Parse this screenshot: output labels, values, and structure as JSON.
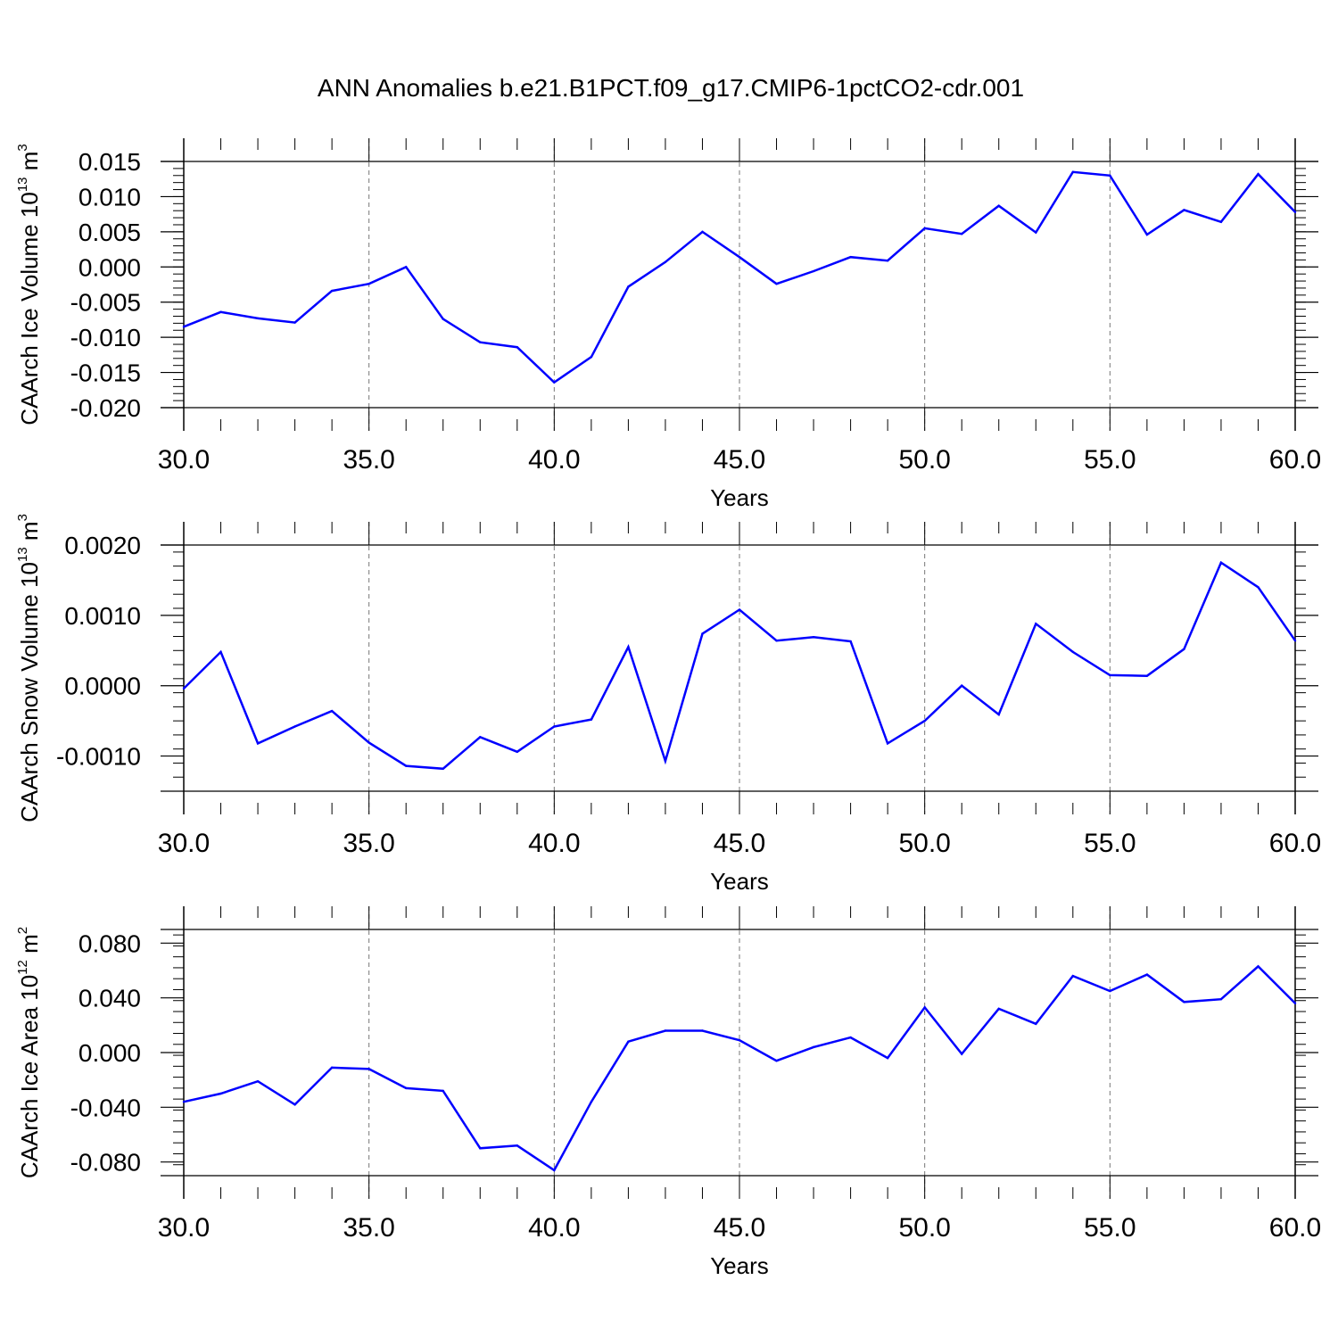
{
  "title": "ANN Anomalies b.e21.B1PCT.f09_g17.CMIP6-1pctCO2-cdr.001",
  "colors": {
    "line": "#0000ff",
    "axis": "#000000",
    "grid": "#777777"
  },
  "chart_data": [
    {
      "type": "line",
      "ylabel": {
        "text": "CAArch Ice Volume 10",
        "exp": "13",
        "unit": " m",
        "unit_exp": "3"
      },
      "xlabel": "Years",
      "xlim": [
        30,
        60
      ],
      "ylim": [
        -0.02,
        0.015
      ],
      "x_ticks": [
        "30.0",
        "35.0",
        "40.0",
        "45.0",
        "50.0",
        "55.0",
        "60.0"
      ],
      "y_ticks": [
        {
          "value": 0.015,
          "label": "0.015"
        },
        {
          "value": 0.01,
          "label": "0.010"
        },
        {
          "value": 0.005,
          "label": "0.005"
        },
        {
          "value": 0.0,
          "label": "0.000"
        },
        {
          "value": -0.005,
          "label": "-0.005"
        },
        {
          "value": -0.01,
          "label": "-0.010"
        },
        {
          "value": -0.015,
          "label": "-0.015"
        },
        {
          "value": -0.02,
          "label": "-0.020"
        }
      ],
      "x": [
        30,
        31,
        32,
        33,
        34,
        35,
        36,
        37,
        38,
        39,
        40,
        41,
        42,
        43,
        44,
        45,
        46,
        47,
        48,
        49,
        50,
        51,
        52,
        53,
        54,
        55,
        56,
        57,
        58,
        59,
        60
      ],
      "y": [
        -0.0085,
        -0.0064,
        -0.0073,
        -0.0079,
        -0.0034,
        -0.0024,
        0.0,
        -0.0074,
        -0.0107,
        -0.0114,
        -0.0164,
        -0.0128,
        -0.0028,
        0.0007,
        0.005,
        0.0014,
        -0.0024,
        -0.0006,
        0.0014,
        0.0009,
        0.0055,
        0.0047,
        0.0087,
        0.0049,
        0.0135,
        0.013,
        0.0046,
        0.0081,
        0.0064,
        0.0132,
        0.0078
      ],
      "grid": true
    },
    {
      "type": "line",
      "ylabel": {
        "text": "CAArch Snow Volume 10",
        "exp": "13",
        "unit": " m",
        "unit_exp": "3"
      },
      "xlabel": "Years",
      "xlim": [
        30,
        60
      ],
      "ylim": [
        -0.0015,
        0.002
      ],
      "x_ticks": [
        "30.0",
        "35.0",
        "40.0",
        "45.0",
        "50.0",
        "55.0",
        "60.0"
      ],
      "y_ticks": [
        {
          "value": 0.002,
          "label": "0.0020"
        },
        {
          "value": 0.001,
          "label": "0.0010"
        },
        {
          "value": 0.0,
          "label": "0.0000"
        },
        {
          "value": -0.001,
          "label": "-0.0010"
        }
      ],
      "x": [
        30,
        31,
        32,
        33,
        34,
        35,
        36,
        37,
        38,
        39,
        40,
        41,
        42,
        43,
        44,
        45,
        46,
        47,
        48,
        49,
        50,
        51,
        52,
        53,
        54,
        55,
        56,
        57,
        58,
        59,
        60
      ],
      "y": [
        -4e-05,
        0.00048,
        -0.00082,
        -0.00058,
        -0.00036,
        -0.00081,
        -0.00114,
        -0.00118,
        -0.00073,
        -0.00094,
        -0.00058,
        -0.00048,
        0.00055,
        -0.00107,
        0.00074,
        0.00108,
        0.00064,
        0.00069,
        0.00063,
        -0.00082,
        -0.0005,
        0.0,
        -0.00041,
        0.00088,
        0.00048,
        0.00015,
        0.00014,
        0.00052,
        0.00175,
        0.0014,
        0.00064
      ],
      "grid": true
    },
    {
      "type": "line",
      "ylabel": {
        "text": "CAArch Ice Area 10",
        "exp": "12",
        "unit": " m",
        "unit_exp": "2"
      },
      "xlabel": "Years",
      "xlim": [
        30,
        60
      ],
      "ylim": [
        -0.09,
        0.09
      ],
      "x_ticks": [
        "30.0",
        "35.0",
        "40.0",
        "45.0",
        "50.0",
        "55.0",
        "60.0"
      ],
      "y_ticks": [
        {
          "value": 0.08,
          "label": "0.080"
        },
        {
          "value": 0.04,
          "label": "0.040"
        },
        {
          "value": 0.0,
          "label": "0.000"
        },
        {
          "value": -0.04,
          "label": "-0.040"
        },
        {
          "value": -0.08,
          "label": "-0.080"
        }
      ],
      "x": [
        30,
        31,
        32,
        33,
        34,
        35,
        36,
        37,
        38,
        39,
        40,
        41,
        42,
        43,
        44,
        45,
        46,
        47,
        48,
        49,
        50,
        51,
        52,
        53,
        54,
        55,
        56,
        57,
        58,
        59,
        60
      ],
      "y": [
        -0.036,
        -0.03,
        -0.021,
        -0.038,
        -0.011,
        -0.012,
        -0.026,
        -0.028,
        -0.07,
        -0.068,
        -0.086,
        -0.036,
        0.008,
        0.016,
        0.016,
        0.009,
        -0.006,
        0.004,
        0.011,
        -0.004,
        0.033,
        -0.001,
        0.032,
        0.021,
        0.056,
        0.045,
        0.057,
        0.037,
        0.039,
        0.063,
        0.036
      ],
      "grid": true
    }
  ]
}
